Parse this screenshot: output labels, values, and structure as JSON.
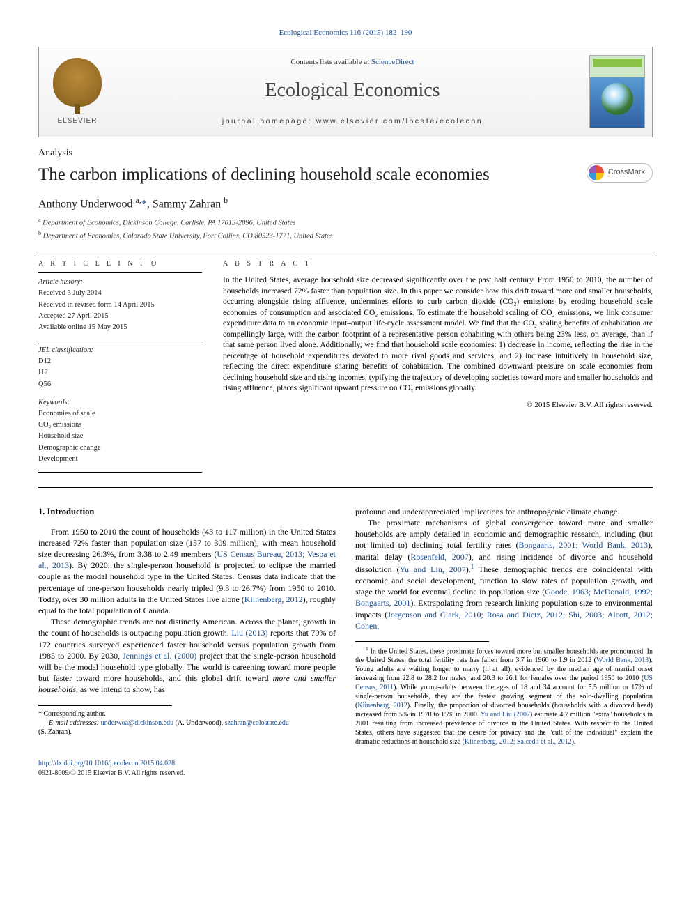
{
  "journal_ref": {
    "text_before": "",
    "link": "Ecological Economics 116 (2015) 182–190",
    "text_after": ""
  },
  "masthead": {
    "elsevier": "ELSEVIER",
    "contents_before": "Contents lists available at ",
    "contents_link": "ScienceDirect",
    "journal_title": "Ecological Economics",
    "homepage_label": "journal homepage: ",
    "homepage_url": "www.elsevier.com/locate/ecolecon"
  },
  "article_type": "Analysis",
  "paper_title": "The carbon implications of declining household scale economies",
  "crossmark_label": "CrossMark",
  "authors_html": "Anthony Underwood <sup>a,</sup><a>*</a>, Sammy Zahran <sup>b</sup>",
  "affiliations": [
    "a  Department of Economics, Dickinson College, Carlisle, PA 17013-2896, United States",
    "b  Department of Economics, Colorado State University, Fort Collins, CO 80523-1771, United States"
  ],
  "article_info": {
    "heading": "A R T I C L E   I N F O",
    "history_label": "Article history:",
    "history": [
      "Received 3 July 2014",
      "Received in revised form 14 April 2015",
      "Accepted 27 April 2015",
      "Available online 15 May 2015"
    ],
    "jel_label": "JEL classification:",
    "jel": [
      "D12",
      "I12",
      "Q56"
    ],
    "keywords_label": "Keywords:",
    "keywords": [
      "Economies of scale",
      "CO₂ emissions",
      "Household size",
      "Demographic change",
      "Development"
    ]
  },
  "abstract": {
    "heading": "A B S T R A C T",
    "text": "In the United States, average household size decreased significantly over the past half century. From 1950 to 2010, the number of households increased 72% faster than population size. In this paper we consider how this drift toward more and smaller households, occurring alongside rising affluence, undermines efforts to curb carbon dioxide (CO₂) emissions by eroding household scale economies of consumption and associated CO₂ emissions. To estimate the household scaling of CO₂ emissions, we link consumer expenditure data to an economic input–output life-cycle assessment model. We find that the CO₂ scaling benefits of cohabitation are compellingly large, with the carbon footprint of a representative person cohabiting with others being 23% less, on average, than if that same person lived alone. Additionally, we find that household scale economies: 1) decrease in income, reflecting the rise in the percentage of household expenditures devoted to more rival goods and services; and 2) increase intuitively in household size, reflecting the direct expenditure sharing benefits of cohabitation. The combined downward pressure on scale economies from declining household size and rising incomes, typifying the trajectory of developing societies toward more and smaller households and rising affluence, places significant upward pressure on CO₂ emissions globally.",
    "copyright": "© 2015 Elsevier B.V. All rights reserved."
  },
  "body": {
    "section_heading": "1. Introduction",
    "p1_a": "From 1950 to 2010 the count of households (43 to 117 million) in the United States increased 72% faster than population size (157 to 309 million), with mean household size decreasing 26.3%, from 3.38 to 2.49 members (",
    "p1_link1": "US Census Bureau, 2013; Vespa et al., 2013",
    "p1_b": "). By 2020, the single-person household is projected to eclipse the married couple as the modal household type in the United States. Census data indicate that the percentage of one-person households nearly tripled (9.3 to 26.7%) from 1950 to 2010. Today, over 30 million adults in the United States live alone (",
    "p1_link2": "Klinenberg, 2012",
    "p1_c": "), roughly equal to the total population of Canada.",
    "p2_a": "These demographic trends are not distinctly American. Across the planet, growth in the count of households is outpacing population growth. ",
    "p2_link1": "Liu (2013)",
    "p2_b": " reports that 79% of 172 countries surveyed experienced faster household versus population growth from 1985 to 2000. By 2030, ",
    "p2_link2": "Jennings et al. (2000)",
    "p2_c": " project that the single-person household will be the modal household type globally. The world is careening toward more people but faster toward more households, and this global drift toward ",
    "p2_em": "more and smaller households",
    "p2_d": ", as we intend to show, has ",
    "p3": "profound and underappreciated implications for anthropogenic climate change.",
    "p4_a": "The proximate mechanisms of global convergence toward more and smaller households are amply detailed in economic and demographic research, including (but not limited to) declining total fertility rates (",
    "p4_link1": "Bongaarts, 2001; World Bank, 2013",
    "p4_b": "), marital delay (",
    "p4_link2": "Rosenfeld, 2007",
    "p4_c": "), and rising incidence of divorce and household dissolution (",
    "p4_link3": "Yu and Liu, 2007",
    "p4_d": ").",
    "p4_sup": "1",
    "p4_e": " These demographic trends are coincidental with economic and social development, function to slow rates of population growth, and stage the world for eventual decline in population size (",
    "p4_link4": "Goode, 1963; McDonald, 1992; Bongaarts, 2001",
    "p4_f": "). Extrapolating from research linking population size to environmental impacts (",
    "p4_link5": "Jorgenson and Clark, 2010; Rosa and Dietz, 2012; Shi, 2003; Alcott, 2012; Cohen,"
  },
  "left_footnotes": {
    "corr": "* Corresponding author.",
    "email_label": "E-mail addresses: ",
    "email1": "underwoa@dickinson.edu",
    "email1_who": " (A. Underwood), ",
    "email2": "szahran@colostate.edu",
    "email2_who": " (S. Zahran)."
  },
  "right_footnote": {
    "sup": "1",
    "a": " In the United States, these proximate forces toward more but smaller households are pronounced. In the United States, the total fertility rate has fallen from 3.7 in 1960 to 1.9 in 2012 (",
    "link1": "World Bank, 2013",
    "b": "). Young adults are waiting longer to marry (if at all), evidenced by the median age of martial onset increasing from 22.8 to 28.2 for males, and 20.3 to 26.1 for females over the period 1950 to 2010 (",
    "link2": "US Census, 2011",
    "c": "). While young-adults between the ages of 18 and 34 account for 5.5 million or 17% of single-person households, they are the fastest growing segment of the solo-dwelling population (",
    "link3": "Klinenberg, 2012",
    "d": "). Finally, the proportion of divorced households (households with a divorced head) increased from 5% in 1970 to 15% in 2000. ",
    "link4": "Yu and Liu (2007)",
    "e": " estimate 4.7 million \"extra\" households in 2001 resulting from increased prevalence of divorce in the United States. With respect to the United States, others have suggested that the desire for privacy and the \"cult of the individual\" explain the dramatic reductions in household size (",
    "link5": "Klinenberg, 2012; Salcedo et al., 2012",
    "f": ")."
  },
  "footer": {
    "doi": "http://dx.doi.org/10.1016/j.ecolecon.2015.04.028",
    "issn_line": "0921-8009/© 2015 Elsevier B.V. All rights reserved."
  }
}
